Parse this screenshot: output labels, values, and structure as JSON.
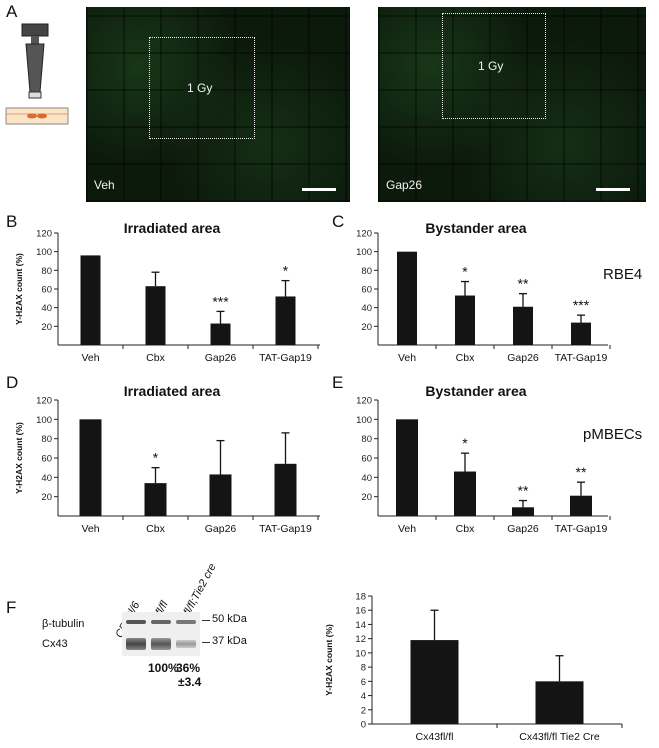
{
  "panels": {
    "a": "A",
    "b": "B",
    "c": "C",
    "d": "D",
    "e": "E",
    "f": "F"
  },
  "micrographs": [
    {
      "condition": "Veh",
      "box_label": "1 Gy"
    },
    {
      "condition": "Gap26",
      "box_label": "1 Gy"
    }
  ],
  "cell_labels": {
    "rbe4": "RBE4",
    "pmbecs": "pMBECs"
  },
  "blot": {
    "lanes": [
      "C57Bl/6",
      "Cx43fl/fl",
      "Cx43fl/fl;Tie2 cre"
    ],
    "rows": [
      "β-tubulin",
      "Cx43"
    ],
    "markers": [
      "50 kDa",
      "37 kDa"
    ],
    "quant": [
      "100%",
      "36%",
      "±3.4"
    ]
  },
  "chart_data": [
    {
      "id": "B",
      "type": "bar",
      "title": "Irradiated area",
      "ylabel": "Y-H2AX count (%)",
      "ylim": [
        0,
        120
      ],
      "yticks": [
        20,
        40,
        60,
        80,
        100,
        120
      ],
      "categories": [
        "Veh",
        "Cbx",
        "Gap26",
        "TAT-Gap19"
      ],
      "values": [
        96,
        63,
        23,
        52
      ],
      "errors": [
        0,
        15,
        13,
        17
      ],
      "significance": [
        "",
        "",
        "***",
        "*"
      ]
    },
    {
      "id": "C",
      "type": "bar",
      "title": "Bystander area",
      "ylabel": "",
      "ylim": [
        0,
        120
      ],
      "yticks": [
        20,
        40,
        60,
        80,
        100,
        120
      ],
      "categories": [
        "Veh",
        "Cbx",
        "Gap26",
        "TAT-Gap19"
      ],
      "values": [
        100,
        53,
        41,
        24
      ],
      "errors": [
        0,
        15,
        14,
        8
      ],
      "significance": [
        "",
        "*",
        "**",
        "***"
      ]
    },
    {
      "id": "D",
      "type": "bar",
      "title": "Irradiated area",
      "ylabel": "Y-H2AX count (%)",
      "ylim": [
        0,
        120
      ],
      "yticks": [
        20,
        40,
        60,
        80,
        100,
        120
      ],
      "categories": [
        "Veh",
        "Cbx",
        "Gap26",
        "TAT-Gap19"
      ],
      "values": [
        100,
        34,
        43,
        54
      ],
      "errors": [
        0,
        16,
        35,
        32
      ],
      "significance": [
        "",
        "*",
        "",
        ""
      ]
    },
    {
      "id": "E",
      "type": "bar",
      "title": "Bystander area",
      "ylabel": "",
      "ylim": [
        0,
        120
      ],
      "yticks": [
        20,
        40,
        60,
        80,
        100,
        120
      ],
      "categories": [
        "Veh",
        "Cbx",
        "Gap26",
        "TAT-Gap19"
      ],
      "values": [
        100,
        46,
        9,
        21
      ],
      "errors": [
        0,
        19,
        7,
        14
      ],
      "significance": [
        "",
        "*",
        "**",
        "**"
      ]
    },
    {
      "id": "F",
      "type": "bar",
      "title": "",
      "ylabel": "Y-H2AX count (%)",
      "ylim": [
        0,
        18
      ],
      "yticks": [
        0,
        2,
        4,
        6,
        8,
        10,
        12,
        14,
        16,
        18
      ],
      "categories": [
        "Cx43fl/fl",
        "Cx43fl/fl Tie2 Cre"
      ],
      "values": [
        11.8,
        6.0
      ],
      "errors": [
        4.2,
        3.6
      ],
      "significance": [
        "",
        ""
      ]
    }
  ]
}
